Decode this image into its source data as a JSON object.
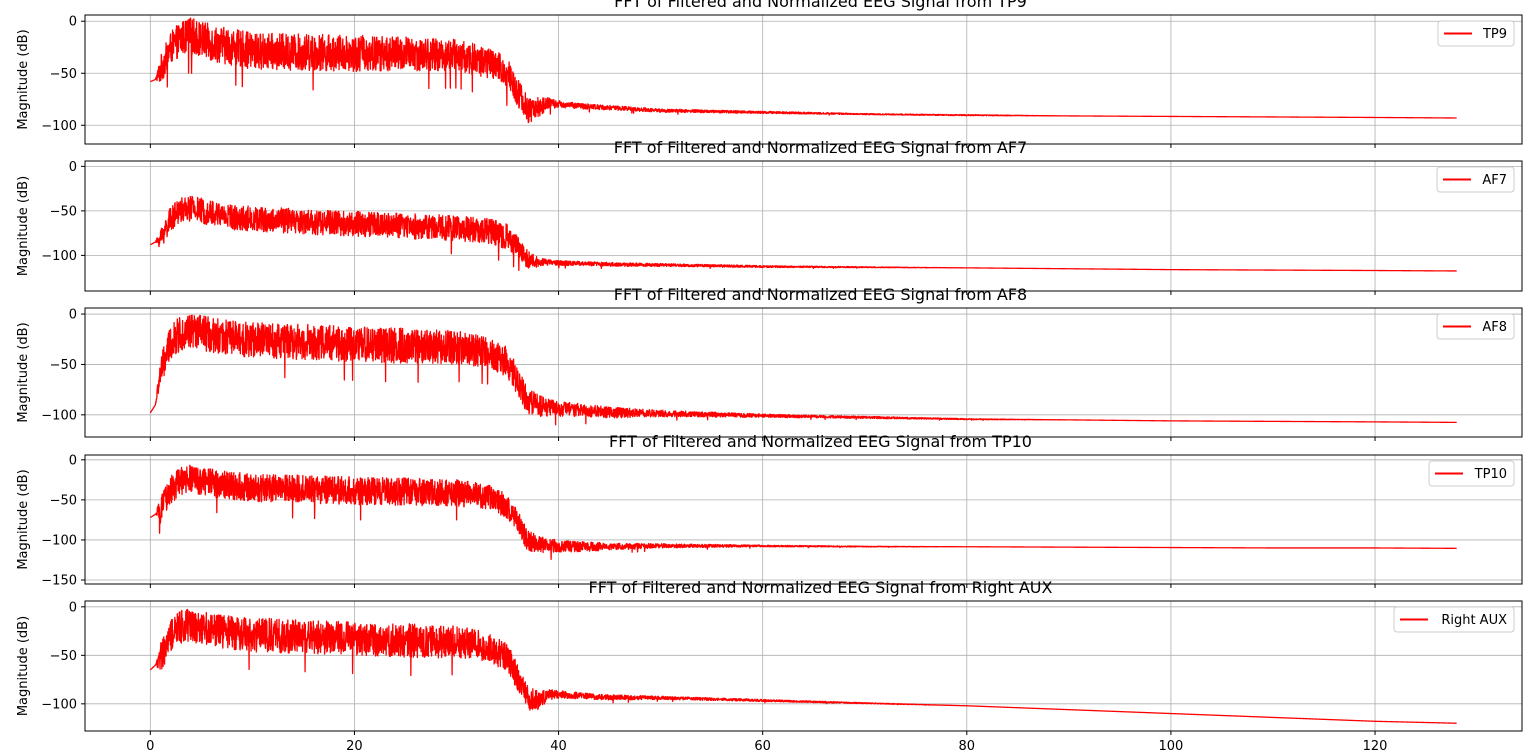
{
  "colors": {
    "series": "#ff0000",
    "grid": "#b0b0b0",
    "axes": "#000000"
  },
  "chart_data": [
    {
      "type": "line",
      "title": "FFT of Filtered and Normalized EEG Signal from TP9",
      "xlabel": "",
      "ylabel": "Magnitude (dB)",
      "xlim": [
        -6.4,
        134.4
      ],
      "ylim": [
        -118,
        6
      ],
      "xticks": [
        0,
        20,
        40,
        60,
        80,
        100,
        120
      ],
      "yticks": [
        0,
        -50,
        -100
      ],
      "grid": true,
      "legend_position": "top-right",
      "series": [
        {
          "name": "TP9",
          "x": [
            0,
            0.5,
            1,
            2,
            3,
            4,
            6,
            8,
            10,
            15,
            20,
            25,
            30,
            33,
            35,
            36,
            37,
            38,
            39,
            40,
            42,
            45,
            50,
            60,
            70,
            80,
            90,
            100,
            110,
            120,
            128
          ],
          "y": [
            -58,
            -56,
            -40,
            -18,
            -8,
            -5,
            -12,
            -16,
            -20,
            -21,
            -22,
            -23,
            -25,
            -32,
            -42,
            -60,
            -80,
            -78,
            -76,
            -78,
            -80,
            -82,
            -85,
            -87,
            -89,
            -90,
            -91,
            -91.5,
            -92,
            -92.5,
            -93
          ],
          "band": [
            0,
            0,
            25,
            28,
            30,
            32,
            32,
            32,
            32,
            32,
            32,
            30,
            28,
            28,
            28,
            26,
            24,
            18,
            10,
            6,
            5,
            4,
            3,
            2,
            1,
            1,
            0,
            0,
            0,
            0,
            0
          ]
        }
      ]
    },
    {
      "type": "line",
      "title": "FFT of Filtered and Normalized EEG Signal from AF7",
      "xlabel": "",
      "ylabel": "Magnitude (dB)",
      "xlim": [
        -6.4,
        134.4
      ],
      "ylim": [
        -140,
        6
      ],
      "xticks": [
        0,
        20,
        40,
        60,
        80,
        100,
        120
      ],
      "yticks": [
        0,
        -50,
        -100
      ],
      "grid": true,
      "legend_position": "top-right",
      "series": [
        {
          "name": "AF7",
          "x": [
            0,
            0.5,
            1,
            2,
            3,
            4,
            6,
            8,
            10,
            15,
            20,
            25,
            30,
            33,
            35,
            36,
            37,
            38,
            39,
            40,
            45,
            50,
            60,
            70,
            80,
            90,
            100,
            110,
            120,
            128
          ],
          "y": [
            -88,
            -85,
            -75,
            -52,
            -42,
            -40,
            -45,
            -50,
            -52,
            -55,
            -57,
            -60,
            -62,
            -65,
            -72,
            -85,
            -100,
            -105,
            -106,
            -107,
            -109,
            -110,
            -112,
            -113,
            -114,
            -115,
            -116,
            -116.5,
            -117,
            -117.5
          ],
          "band": [
            0,
            0,
            22,
            25,
            25,
            26,
            26,
            26,
            26,
            26,
            26,
            26,
            26,
            26,
            26,
            22,
            18,
            10,
            6,
            5,
            4,
            3,
            2,
            1,
            0,
            0,
            0,
            0,
            0,
            0
          ]
        }
      ]
    },
    {
      "type": "line",
      "title": "FFT of Filtered and Normalized EEG Signal from AF8",
      "xlabel": "",
      "ylabel": "Magnitude (dB)",
      "xlim": [
        -6.4,
        134.4
      ],
      "ylim": [
        -122,
        6
      ],
      "xticks": [
        0,
        20,
        40,
        60,
        80,
        100,
        120
      ],
      "yticks": [
        0,
        -50,
        -100
      ],
      "grid": true,
      "legend_position": "top-right",
      "series": [
        {
          "name": "AF8",
          "x": [
            0,
            0.5,
            1,
            2,
            3,
            4,
            6,
            8,
            10,
            15,
            20,
            25,
            30,
            33,
            35,
            36,
            37,
            38,
            39,
            40,
            42,
            45,
            50,
            60,
            70,
            80,
            90,
            100,
            110,
            120,
            128
          ],
          "y": [
            -98,
            -90,
            -50,
            -20,
            -10,
            -8,
            -12,
            -15,
            -17,
            -19,
            -21,
            -23,
            -25,
            -30,
            -40,
            -60,
            -80,
            -85,
            -88,
            -90,
            -92,
            -95,
            -97,
            -100,
            -102,
            -104,
            -105,
            -106,
            -106.5,
            -107,
            -107.5
          ],
          "band": [
            0,
            0,
            28,
            30,
            32,
            32,
            32,
            32,
            32,
            32,
            32,
            32,
            30,
            28,
            28,
            26,
            24,
            20,
            16,
            14,
            12,
            10,
            6,
            3,
            2,
            1,
            0,
            0,
            0,
            0,
            0
          ]
        }
      ]
    },
    {
      "type": "line",
      "title": "FFT of Filtered and Normalized EEG Signal from TP10",
      "xlabel": "",
      "ylabel": "Magnitude (dB)",
      "xlim": [
        -6.4,
        134.4
      ],
      "ylim": [
        -155,
        6
      ],
      "xticks": [
        0,
        20,
        40,
        60,
        80,
        100,
        120
      ],
      "yticks": [
        0,
        -50,
        -100,
        -150
      ],
      "grid": true,
      "legend_position": "top-right",
      "series": [
        {
          "name": "TP10",
          "x": [
            0,
            0.5,
            1,
            2,
            3,
            4,
            6,
            8,
            10,
            15,
            20,
            25,
            30,
            33,
            35,
            36,
            37,
            38,
            39,
            40,
            42,
            45,
            50,
            60,
            70,
            80,
            90,
            100,
            110,
            120,
            128
          ],
          "y": [
            -72,
            -68,
            -55,
            -28,
            -18,
            -15,
            -20,
            -24,
            -26,
            -28,
            -30,
            -31,
            -33,
            -38,
            -50,
            -70,
            -95,
            -100,
            -102,
            -104,
            -105,
            -106,
            -106,
            -107,
            -108,
            -108.5,
            -109,
            -109.5,
            -110,
            -110,
            -110.5
          ],
          "band": [
            0,
            0,
            30,
            32,
            32,
            32,
            32,
            32,
            32,
            32,
            32,
            32,
            30,
            28,
            28,
            26,
            24,
            20,
            16,
            14,
            12,
            8,
            5,
            2,
            1,
            0,
            0,
            0,
            0,
            0,
            0
          ]
        }
      ]
    },
    {
      "type": "line",
      "title": "FFT of Filtered and Normalized EEG Signal from Right AUX",
      "xlabel": "",
      "ylabel": "Magnitude (dB)",
      "xlim": [
        -6.4,
        134.4
      ],
      "ylim": [
        -128,
        6
      ],
      "xticks": [
        0,
        20,
        40,
        60,
        80,
        100,
        120
      ],
      "yticks": [
        0,
        -50,
        -100
      ],
      "grid": true,
      "legend_position": "top-right",
      "series": [
        {
          "name": "Right AUX",
          "x": [
            0,
            0.5,
            1,
            2,
            3,
            4,
            6,
            8,
            10,
            15,
            20,
            25,
            30,
            33,
            35,
            36,
            37,
            38,
            39,
            40,
            42,
            45,
            50,
            60,
            70,
            80,
            90,
            100,
            110,
            120,
            128
          ],
          "y": [
            -65,
            -60,
            -45,
            -22,
            -12,
            -10,
            -14,
            -18,
            -20,
            -22,
            -24,
            -26,
            -28,
            -33,
            -45,
            -65,
            -88,
            -92,
            -88,
            -88,
            -90,
            -92,
            -93,
            -96,
            -99,
            -102,
            -106,
            -110,
            -114,
            -118,
            -120
          ],
          "band": [
            0,
            0,
            28,
            30,
            32,
            32,
            32,
            32,
            32,
            32,
            32,
            32,
            30,
            28,
            28,
            26,
            24,
            18,
            10,
            8,
            6,
            5,
            3,
            2,
            1,
            0,
            0,
            0,
            0,
            0,
            0
          ]
        }
      ]
    }
  ]
}
